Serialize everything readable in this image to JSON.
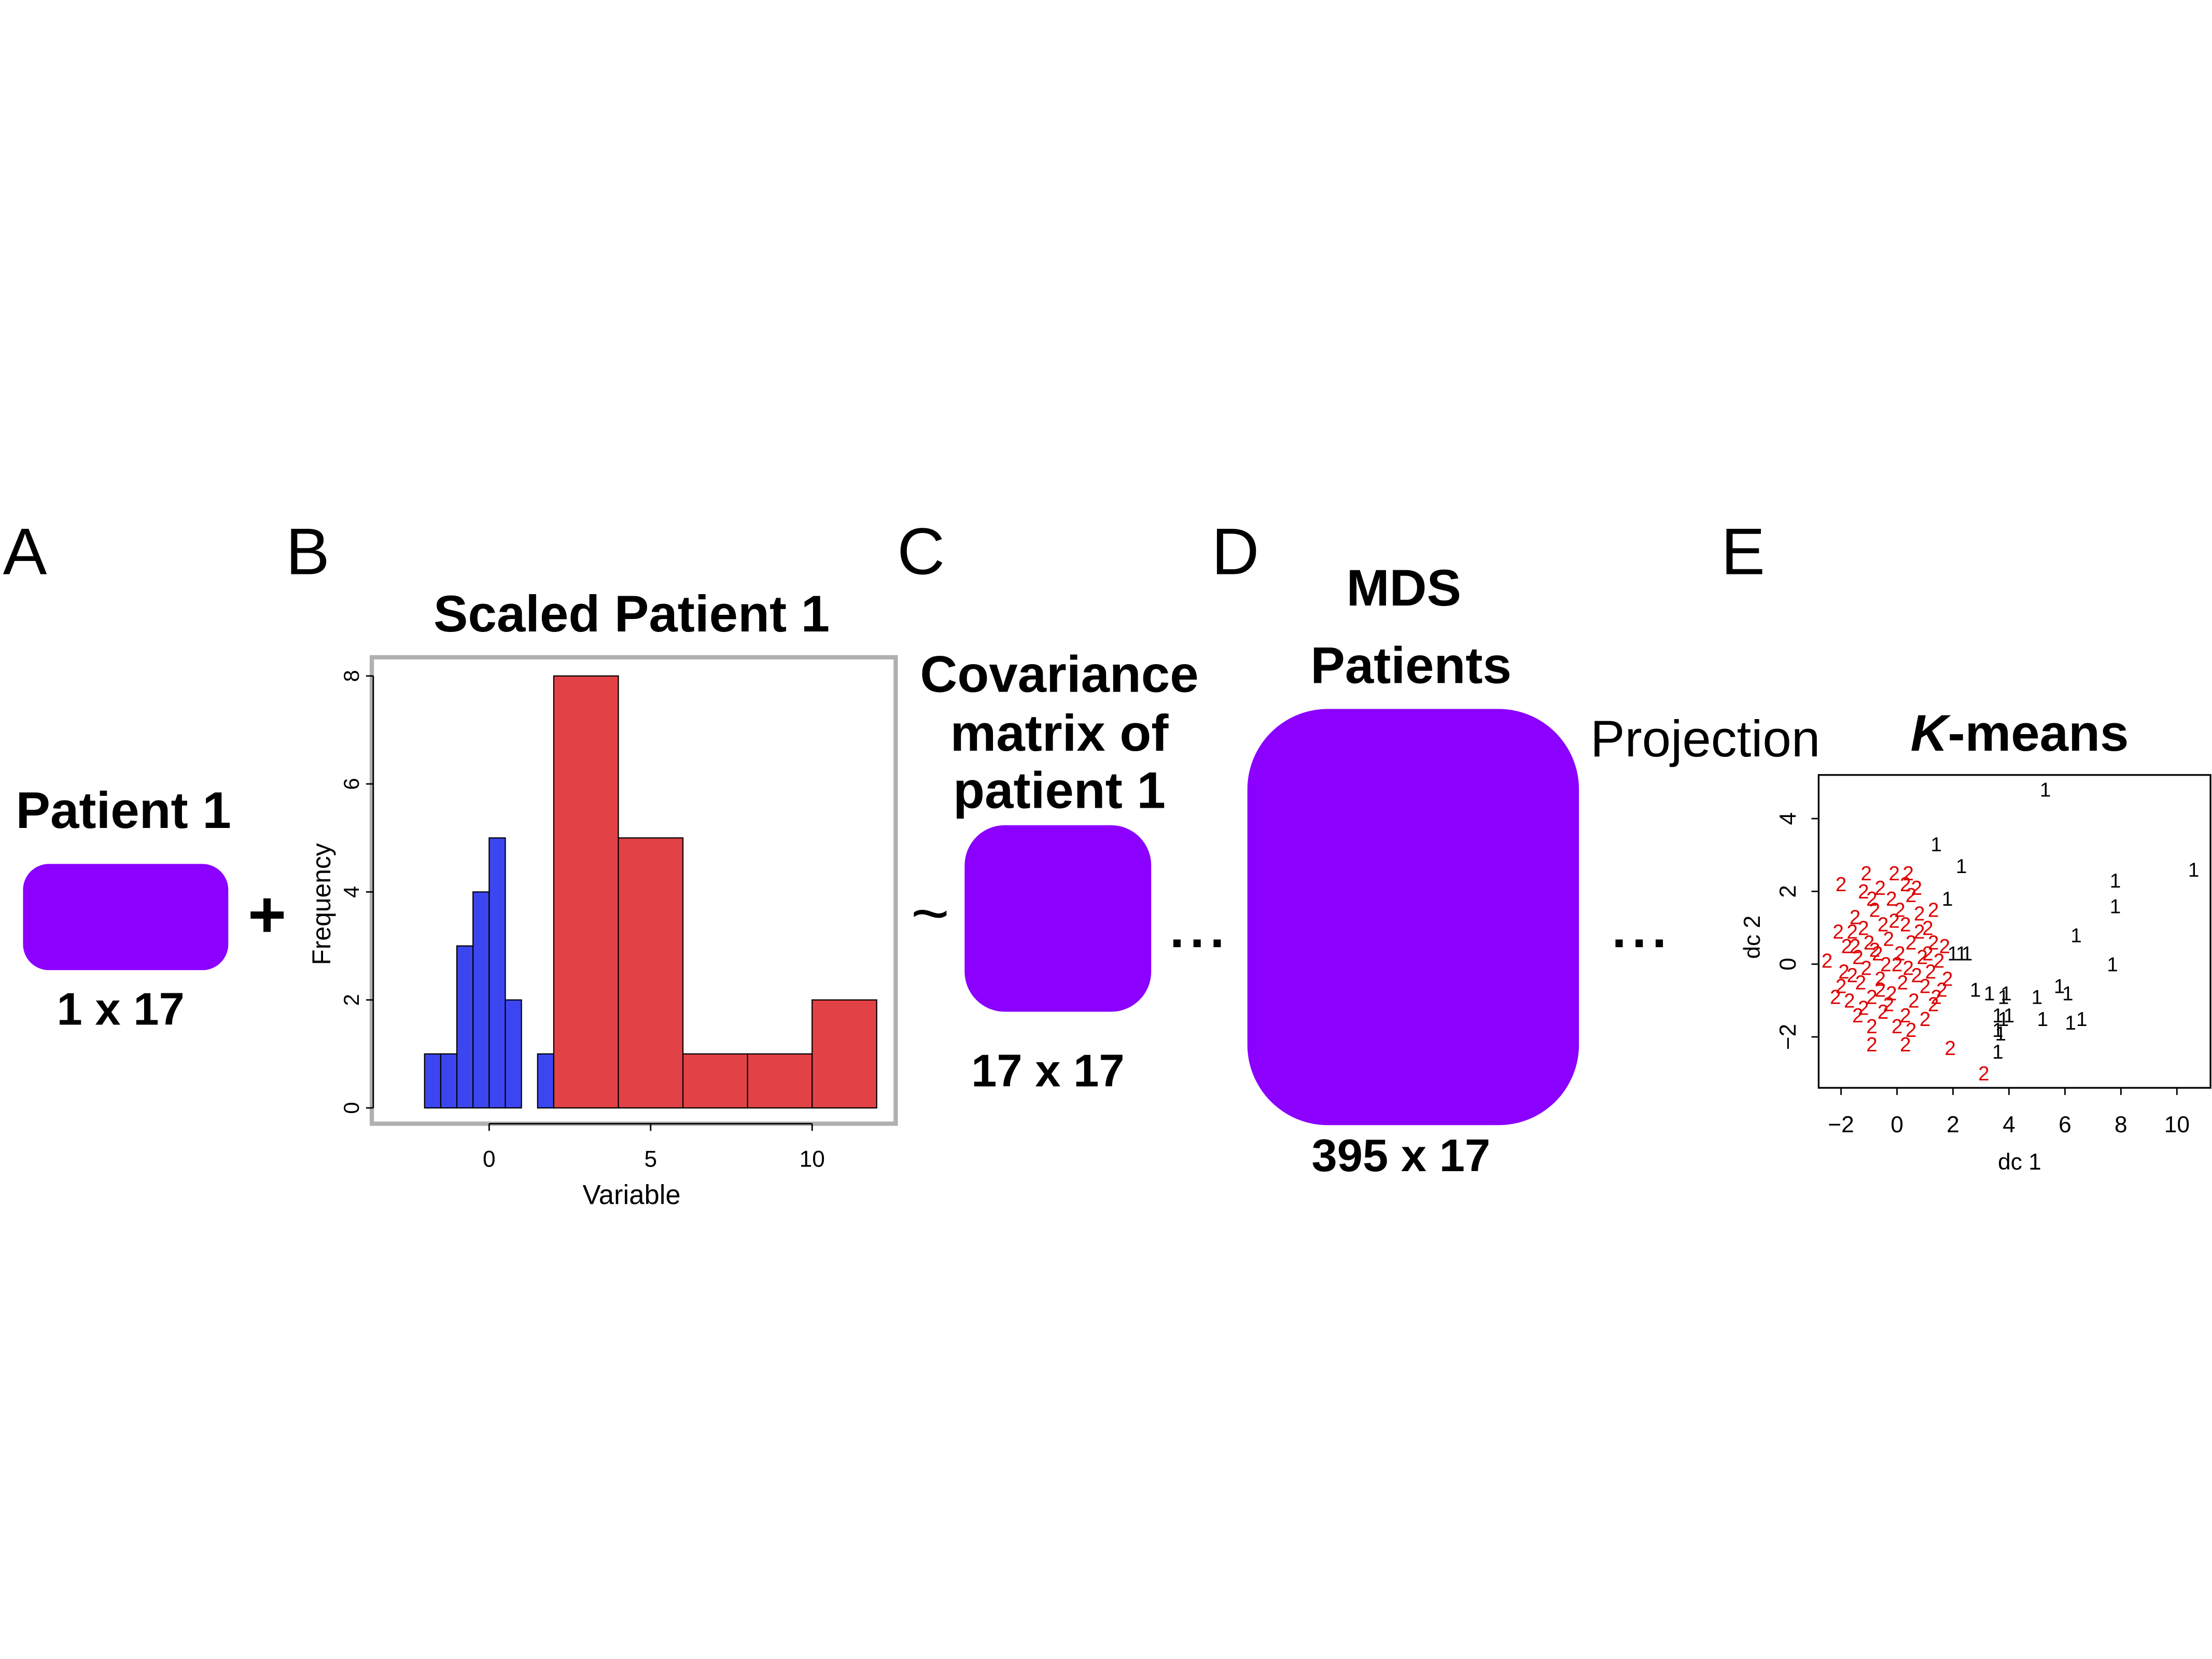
{
  "colors": {
    "purple": "#8b00ff",
    "blue": "#3c46f0",
    "red": "#e24246",
    "axis": "#000000",
    "frame_gray": "#b0b0b0",
    "cluster1": "#000000",
    "cluster2": "#dd0000"
  },
  "panels": {
    "A": {
      "letter": "A",
      "title": "Patient 1",
      "dims": "1 x 17",
      "operator": "+"
    },
    "B": {
      "letter": "B",
      "title": "Scaled Patient 1"
    },
    "C": {
      "letter": "C",
      "title_lines": [
        "Covariance",
        "matrix of",
        "patient 1"
      ],
      "operator": "~",
      "dims": "17 x 17",
      "continuation": "..."
    },
    "D": {
      "letter": "D",
      "title_lines": [
        "MDS",
        "Patients"
      ],
      "dims": "395 x 17",
      "projection": "Projection",
      "continuation": "..."
    },
    "E": {
      "letter": "E",
      "title_italic": "K",
      "title_rest": "-means"
    }
  },
  "chart_data": [
    {
      "type": "bar",
      "title": "",
      "xlabel": "Variable",
      "ylabel": "Frequency",
      "xlim": [
        -3.5,
        12.5
      ],
      "ylim": [
        0,
        8
      ],
      "xticks": [
        0,
        5,
        10
      ],
      "yticks": [
        0,
        2,
        4,
        6,
        8
      ],
      "series": [
        {
          "color": "blue",
          "bins": [
            [
              -2.0,
              -1.5,
              1
            ],
            [
              -1.5,
              -1.0,
              1
            ],
            [
              -1.0,
              -0.5,
              3
            ],
            [
              -0.5,
              0.0,
              4
            ],
            [
              0.0,
              0.5,
              5
            ],
            [
              0.5,
              1.0,
              2
            ],
            [
              1.5,
              2.0,
              1
            ]
          ]
        },
        {
          "color": "red",
          "bins": [
            [
              2,
              4,
              8
            ],
            [
              4,
              6,
              5
            ],
            [
              6,
              8,
              1
            ],
            [
              8,
              10,
              1
            ],
            [
              10,
              12,
              2
            ]
          ]
        }
      ]
    },
    {
      "type": "scatter",
      "title": "",
      "xlabel": "dc 1",
      "ylabel": "dc 2",
      "xlim": [
        -2.8,
        11.2
      ],
      "ylim": [
        -3.4,
        5.2
      ],
      "xticks": [
        -2,
        0,
        2,
        4,
        6,
        8,
        10
      ],
      "xticklabels": [
        "−2",
        "0",
        "2",
        "4",
        "6",
        "8",
        "10"
      ],
      "yticks": [
        -2,
        0,
        2,
        4
      ],
      "yticklabels": [
        "−2",
        "0",
        "2",
        "4"
      ],
      "series": [
        {
          "marker": "1",
          "color": "cluster1",
          "points": [
            [
              5.3,
              4.8
            ],
            [
              1.4,
              3.3
            ],
            [
              2.3,
              2.7
            ],
            [
              10.6,
              2.6
            ],
            [
              7.8,
              2.3
            ],
            [
              7.8,
              1.6
            ],
            [
              1.8,
              1.8
            ],
            [
              6.4,
              0.8
            ],
            [
              7.7,
              0.0
            ],
            [
              2.0,
              0.3
            ],
            [
              2.3,
              0.3
            ],
            [
              2.5,
              0.3
            ],
            [
              2.8,
              -0.7
            ],
            [
              3.3,
              -0.8
            ],
            [
              3.8,
              -0.9
            ],
            [
              3.9,
              -0.8
            ],
            [
              5.0,
              -0.9
            ],
            [
              5.8,
              -0.6
            ],
            [
              6.1,
              -0.8
            ],
            [
              3.6,
              -1.4
            ],
            [
              3.8,
              -1.5
            ],
            [
              4.0,
              -1.4
            ],
            [
              5.2,
              -1.5
            ],
            [
              6.2,
              -1.6
            ],
            [
              6.6,
              -1.5
            ],
            [
              3.6,
              -1.8
            ],
            [
              3.7,
              -1.9
            ],
            [
              3.6,
              -2.4
            ]
          ]
        },
        {
          "marker": "2",
          "color": "cluster2",
          "points": [
            [
              -1.1,
              2.5
            ],
            [
              -0.1,
              2.5
            ],
            [
              0.4,
              2.5
            ],
            [
              -2.0,
              2.2
            ],
            [
              -1.2,
              2.0
            ],
            [
              -0.6,
              2.1
            ],
            [
              0.3,
              2.2
            ],
            [
              0.7,
              2.1
            ],
            [
              -0.9,
              1.8
            ],
            [
              -0.2,
              1.8
            ],
            [
              0.5,
              1.9
            ],
            [
              -1.5,
              1.3
            ],
            [
              -0.8,
              1.5
            ],
            [
              0.1,
              1.5
            ],
            [
              0.8,
              1.4
            ],
            [
              1.3,
              1.5
            ],
            [
              -2.1,
              0.9
            ],
            [
              -1.6,
              0.9
            ],
            [
              -1.2,
              1.0
            ],
            [
              -0.5,
              1.1
            ],
            [
              0.3,
              1.1
            ],
            [
              1.1,
              1.0
            ],
            [
              -1.8,
              0.5
            ],
            [
              -1.0,
              0.6
            ],
            [
              -0.3,
              0.7
            ],
            [
              0.5,
              0.6
            ],
            [
              1.3,
              0.6
            ],
            [
              1.7,
              0.5
            ],
            [
              -2.5,
              0.1
            ],
            [
              -1.4,
              0.2
            ],
            [
              -0.7,
              0.3
            ],
            [
              0.1,
              0.3
            ],
            [
              0.9,
              0.2
            ],
            [
              1.5,
              0.1
            ],
            [
              -1.9,
              -0.2
            ],
            [
              -1.1,
              -0.1
            ],
            [
              -0.4,
              0.0
            ],
            [
              0.4,
              -0.1
            ],
            [
              1.2,
              -0.2
            ],
            [
              1.8,
              -0.4
            ],
            [
              -2.0,
              -0.6
            ],
            [
              -1.3,
              -0.5
            ],
            [
              -0.6,
              -0.4
            ],
            [
              0.2,
              -0.5
            ],
            [
              1.0,
              -0.6
            ],
            [
              1.6,
              -0.7
            ],
            [
              -1.7,
              -1.0
            ],
            [
              -0.9,
              -0.9
            ],
            [
              -0.2,
              -0.8
            ],
            [
              0.6,
              -1.0
            ],
            [
              1.3,
              -1.1
            ],
            [
              -1.4,
              -1.4
            ],
            [
              -0.5,
              -1.3
            ],
            [
              0.3,
              -1.4
            ],
            [
              1.0,
              -1.5
            ],
            [
              -0.9,
              -1.7
            ],
            [
              0.0,
              -1.7
            ],
            [
              0.5,
              -1.8
            ],
            [
              -0.9,
              -2.2
            ],
            [
              0.3,
              -2.2
            ],
            [
              1.9,
              -2.3
            ],
            [
              3.1,
              -3.0
            ],
            [
              -1.6,
              -0.3
            ],
            [
              -0.8,
              0.4
            ],
            [
              0.7,
              -0.3
            ],
            [
              -0.1,
              1.2
            ],
            [
              1.4,
              -0.9
            ],
            [
              -1.2,
              -1.2
            ],
            [
              0.8,
              0.9
            ],
            [
              -0.3,
              -1.1
            ],
            [
              -2.2,
              -0.9
            ],
            [
              -1.5,
              0.5
            ],
            [
              0.0,
              0.0
            ],
            [
              -0.6,
              -0.7
            ],
            [
              1.1,
              0.3
            ]
          ]
        }
      ]
    }
  ]
}
